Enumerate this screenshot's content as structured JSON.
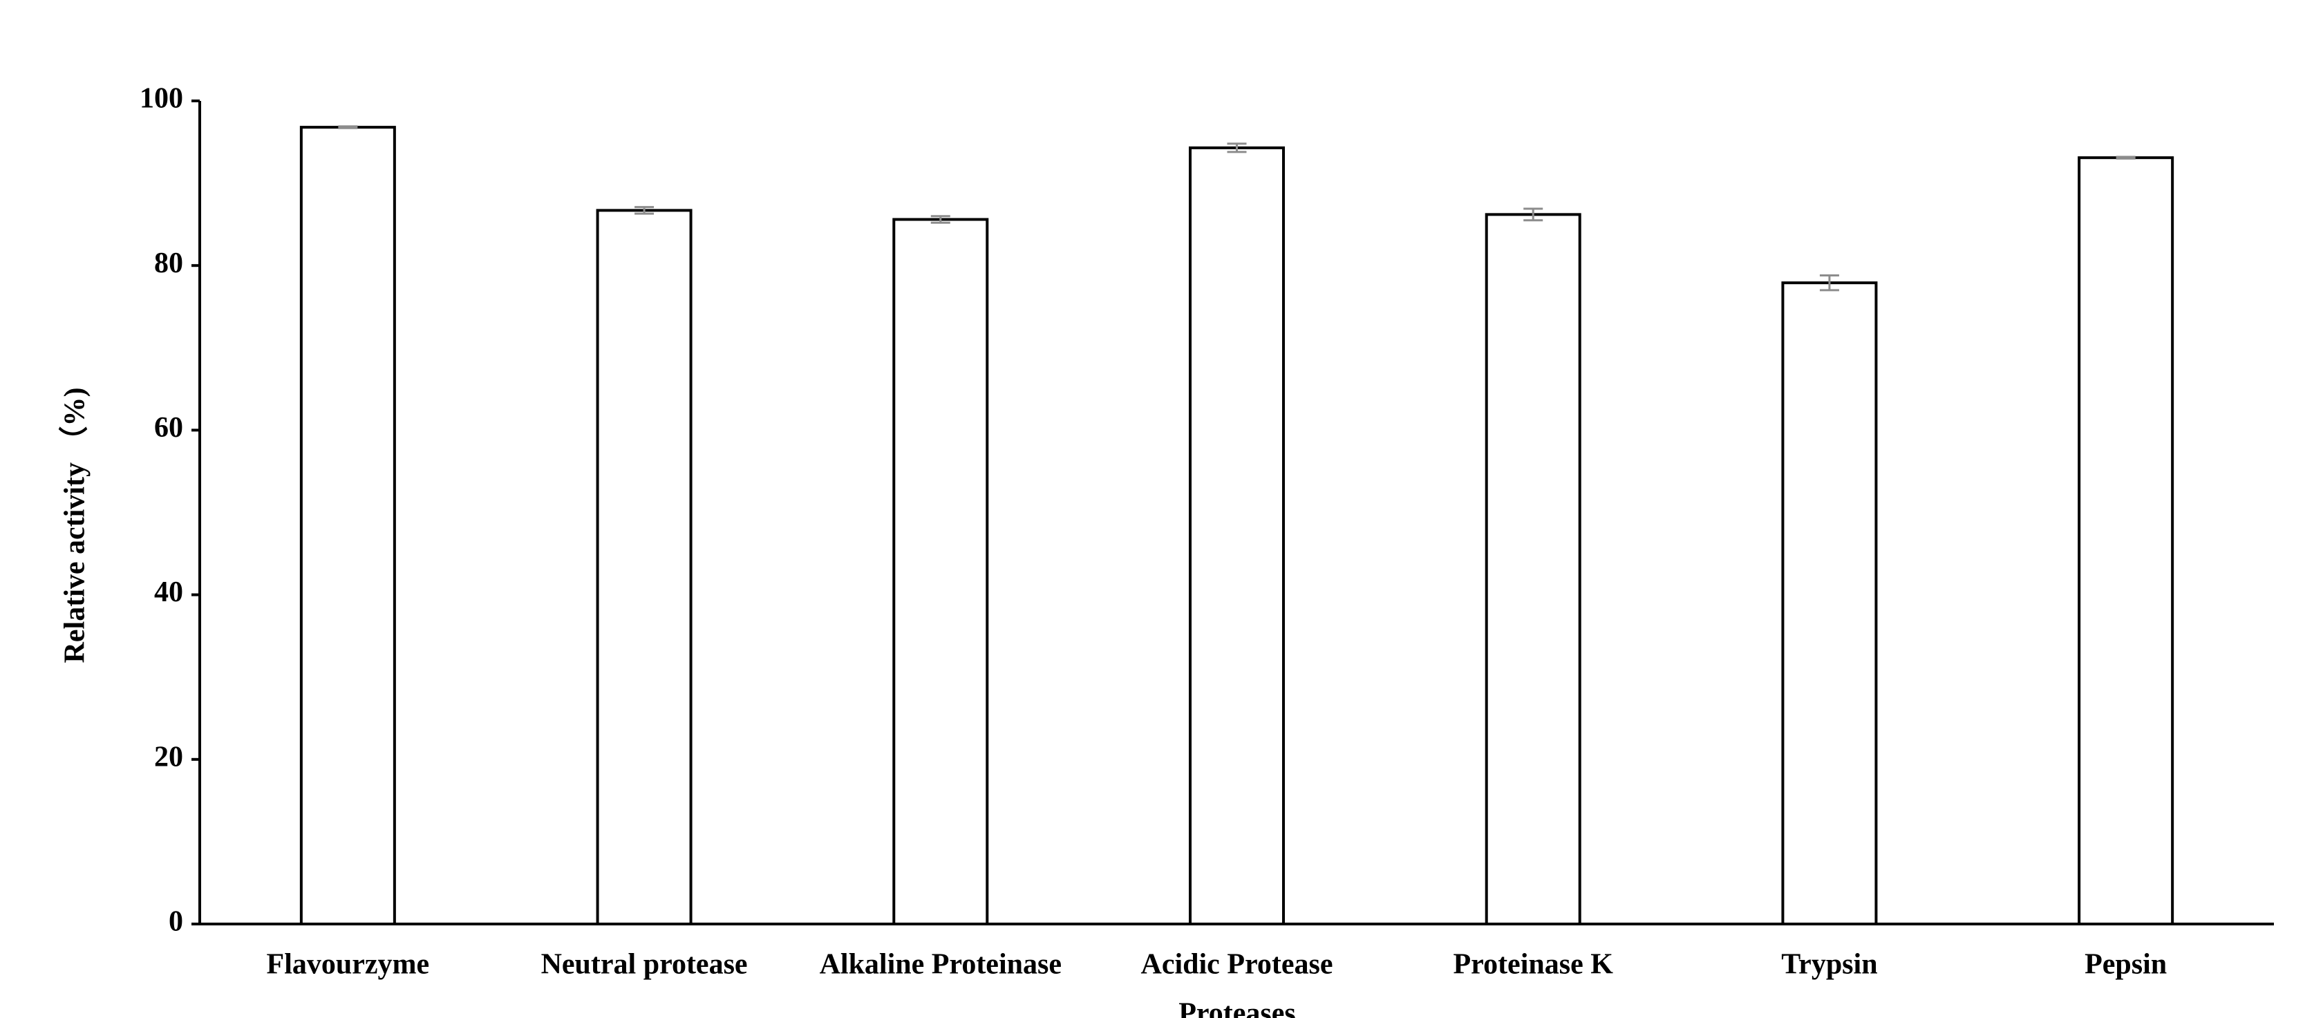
{
  "chart_data": {
    "type": "bar",
    "x_label": "Proteases",
    "y_label": "Relative activity （%)",
    "categories": [
      "Flavourzyme",
      "Neutral protease",
      "Alkaline Proteinase",
      "Acidic Protease",
      "Proteinase K",
      "Trypsin",
      "Pepsin"
    ],
    "values": [
      96.8,
      86.7,
      85.6,
      94.3,
      86.2,
      77.9,
      93.1
    ],
    "errors": [
      0.1,
      0.4,
      0.4,
      0.5,
      0.7,
      0.9,
      0.1
    ],
    "color": "#ffffff",
    "edge_color": "#000000",
    "error_color": "#8c8c8c",
    "ylim": [
      0,
      100
    ],
    "yticks": [
      0,
      20,
      40,
      60,
      80,
      100
    ],
    "grid": false
  }
}
